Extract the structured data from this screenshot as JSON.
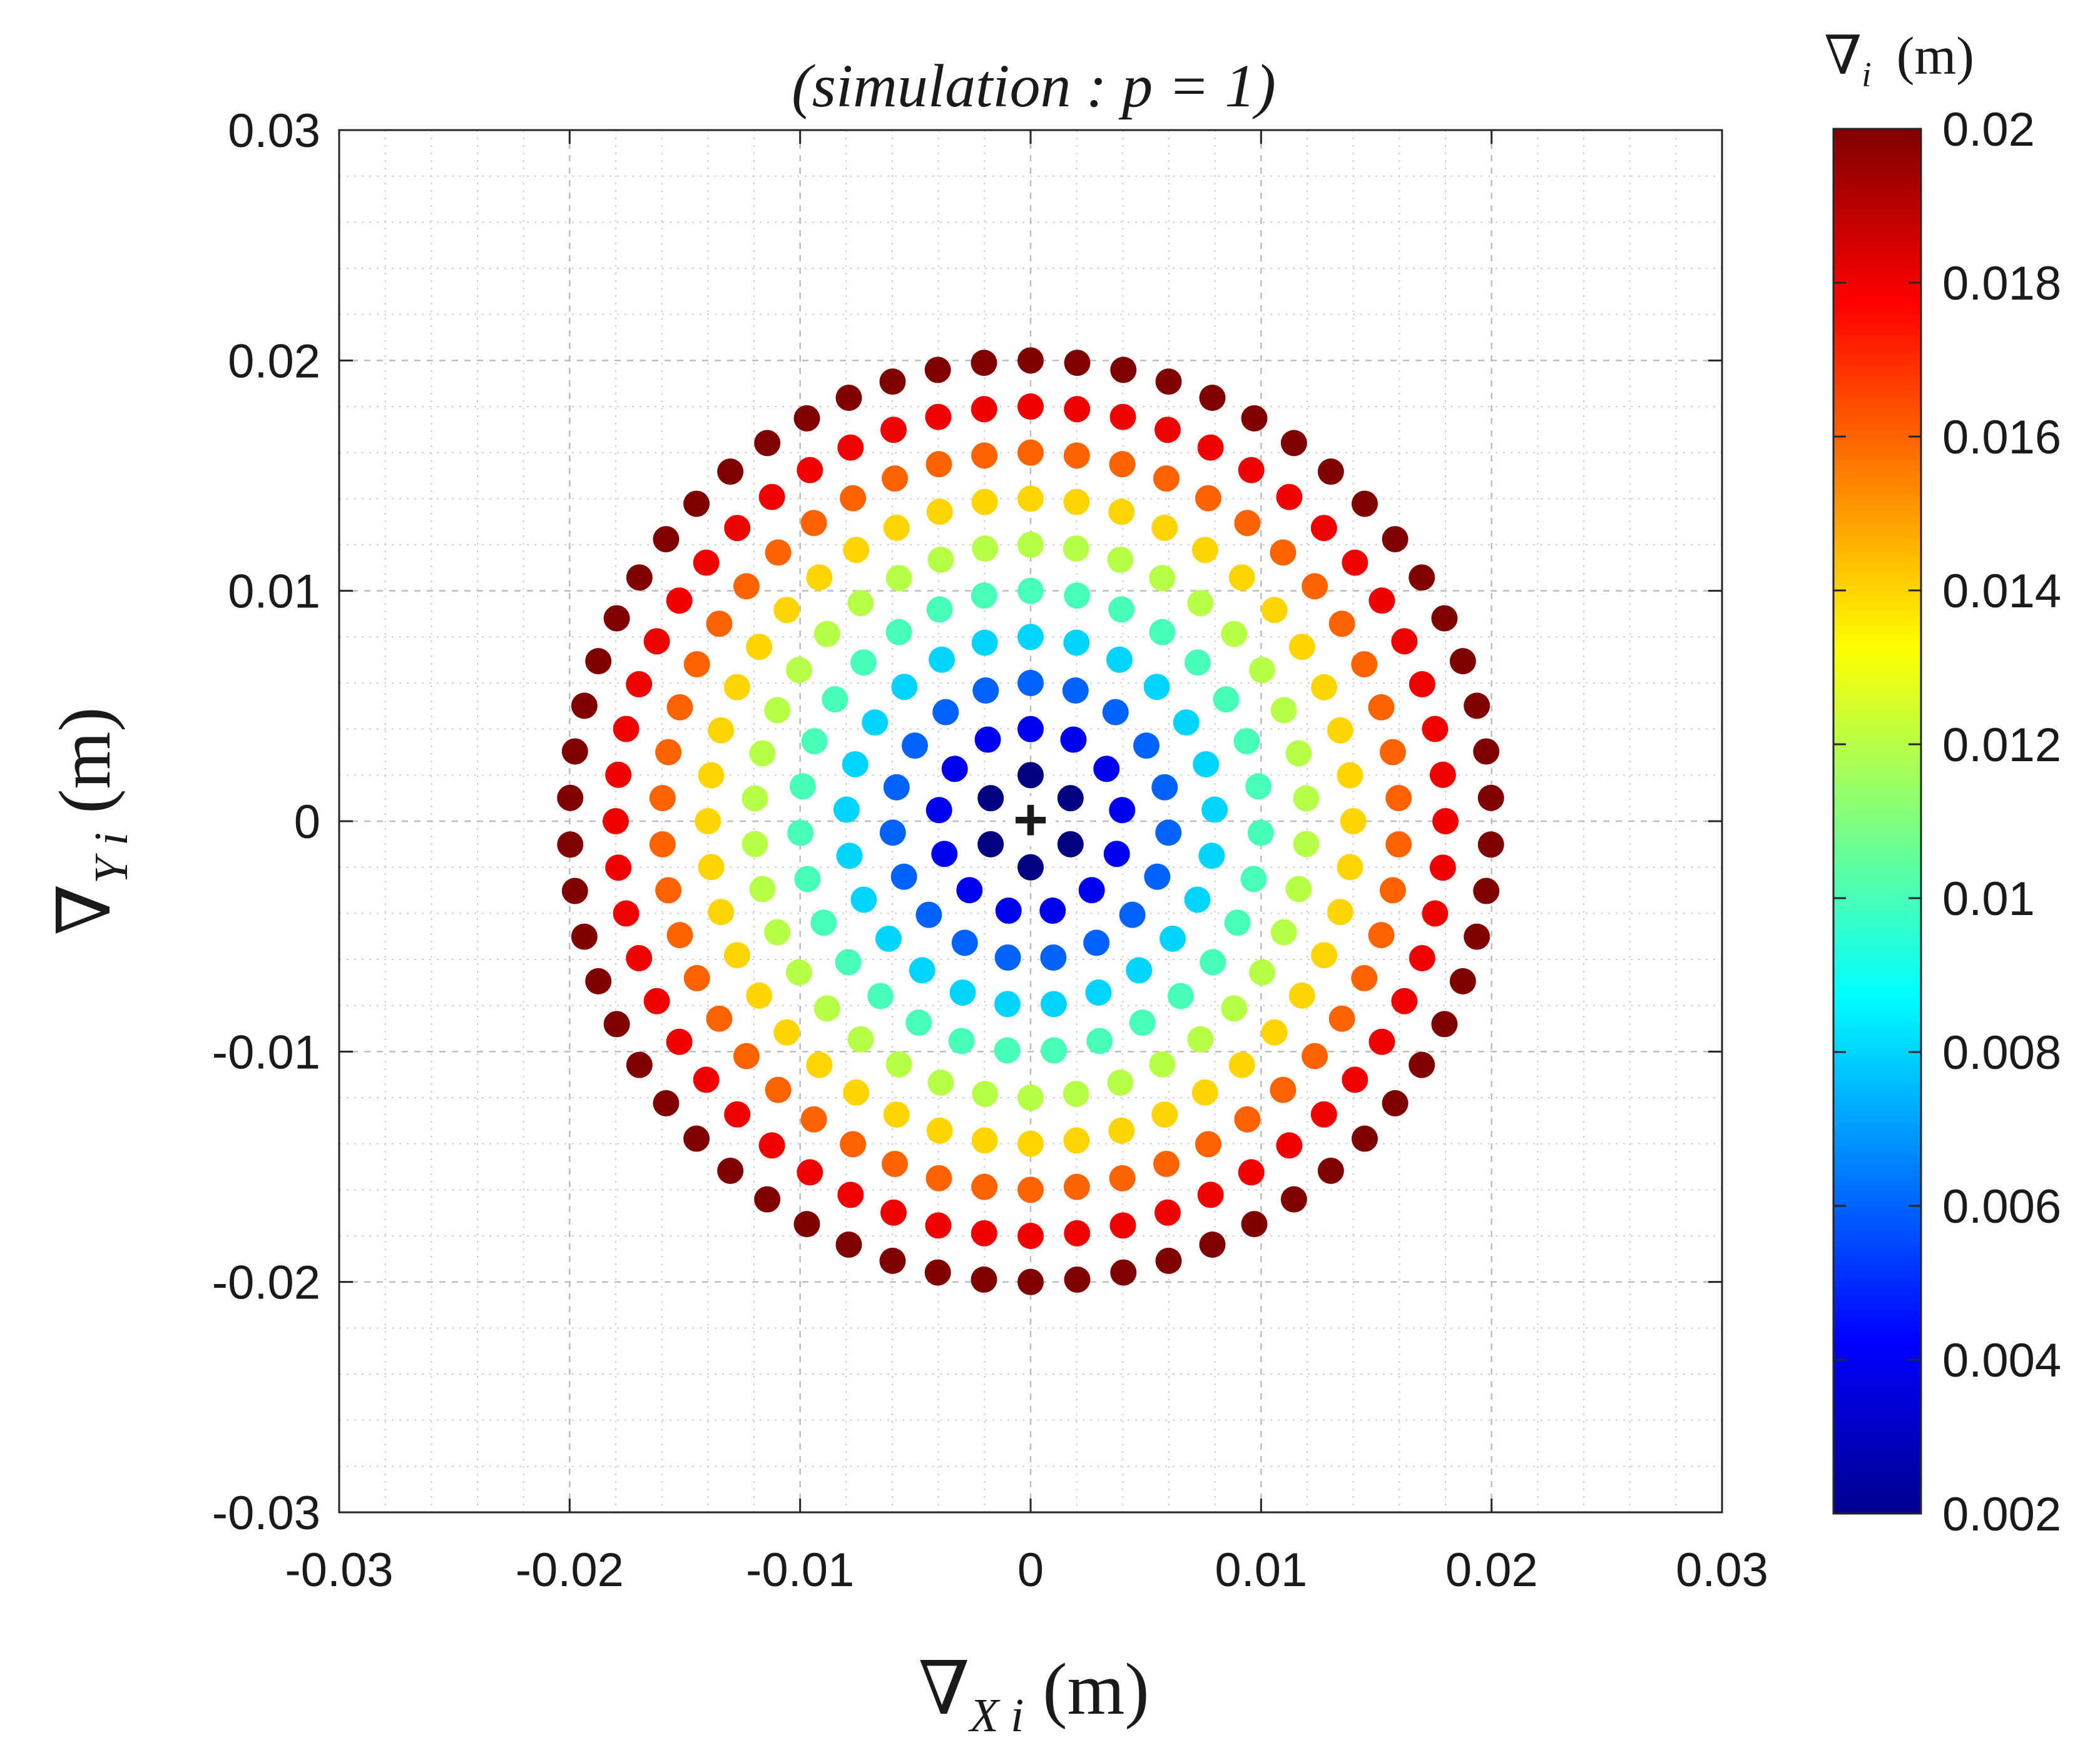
{
  "chart_data": {
    "type": "scatter",
    "title": "(simulation :  p = 1)",
    "xlabel": {
      "symbol": "∇",
      "subscript": "X i",
      "unit": "(m)"
    },
    "ylabel": {
      "symbol": "∇",
      "subscript": "Y i",
      "unit": "(m)"
    },
    "xlim": [
      -0.03,
      0.03
    ],
    "ylim": [
      -0.03,
      0.03
    ],
    "xticks": [
      "-0.03",
      "-0.02",
      "-0.01",
      "0",
      "0.01",
      "0.02",
      "0.03"
    ],
    "yticks": [
      "-0.03",
      "-0.02",
      "-0.01",
      "0",
      "0.01",
      "0.02",
      "0.03"
    ],
    "grid": true,
    "minor_grid": true,
    "center_marker": "+",
    "center": [
      0,
      0
    ],
    "series": [
      {
        "name": "ring r=0.002",
        "radius": 0.002,
        "points": 6
      },
      {
        "name": "ring r=0.004",
        "radius": 0.004,
        "points": 13
      },
      {
        "name": "ring r=0.006",
        "radius": 0.006,
        "points": 19
      },
      {
        "name": "ring r=0.008",
        "radius": 0.008,
        "points": 25
      },
      {
        "name": "ring r=0.010",
        "radius": 0.01,
        "points": 31
      },
      {
        "name": "ring r=0.012",
        "radius": 0.012,
        "points": 38
      },
      {
        "name": "ring r=0.014",
        "radius": 0.014,
        "points": 44
      },
      {
        "name": "ring r=0.016",
        "radius": 0.016,
        "points": 50
      },
      {
        "name": "ring r=0.018",
        "radius": 0.018,
        "points": 56
      },
      {
        "name": "ring r=0.020",
        "radius": 0.02,
        "points": 62
      }
    ],
    "colorbar": {
      "title_symbol": "∇",
      "title_subscript": "i",
      "title_unit": "(m)",
      "min": 0.002,
      "max": 0.02,
      "colormap": "jet",
      "ticks": [
        "0.02",
        "0.018",
        "0.016",
        "0.014",
        "0.012",
        "0.01",
        "0.008",
        "0.006",
        "0.004",
        "0.002"
      ]
    }
  }
}
